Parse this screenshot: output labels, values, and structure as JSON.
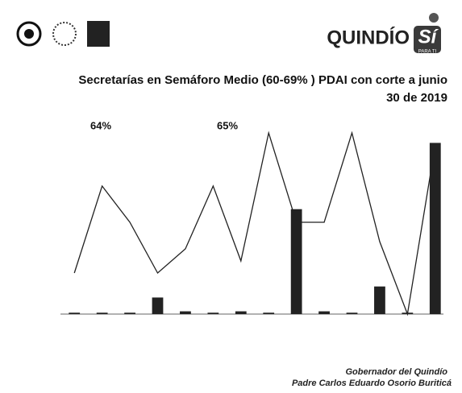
{
  "brand": {
    "name": "QUINDÍO",
    "badge": "Sí",
    "tagline": "PARA TI"
  },
  "chart_data": {
    "type": "bar",
    "title": "Secretarías en Semáforo Medio (60-69% ) PDAI con corte a junio",
    "subtitle": "30 de 2019",
    "annotations": [
      "64%",
      "65%"
    ],
    "categories": [
      null,
      null,
      null,
      null,
      null,
      null,
      null,
      null,
      null,
      null,
      null,
      null,
      null,
      null
    ],
    "series": [
      {
        "name": null,
        "color": "#222222",
        "values": [
          0.05,
          0.05,
          0.05,
          0.6,
          0.1,
          0.05,
          0.1,
          0.05,
          3.8,
          0.1,
          0.05,
          1.0,
          0.05,
          6.2
        ]
      },
      {
        "name": null,
        "color": "#222222",
        "axis": "y2",
        "type": "line",
        "values": [
          17,
          53,
          38,
          17,
          27,
          53,
          22,
          75,
          38,
          38,
          75,
          30,
          0,
          70
        ]
      }
    ],
    "ylim": [
      0,
      7
    ],
    "y2lim": [
      0,
      80
    ]
  },
  "footer": {
    "line1": "Gobernador del Quindío",
    "line2": "Padre Carlos Eduardo Osorio Buriticá"
  }
}
